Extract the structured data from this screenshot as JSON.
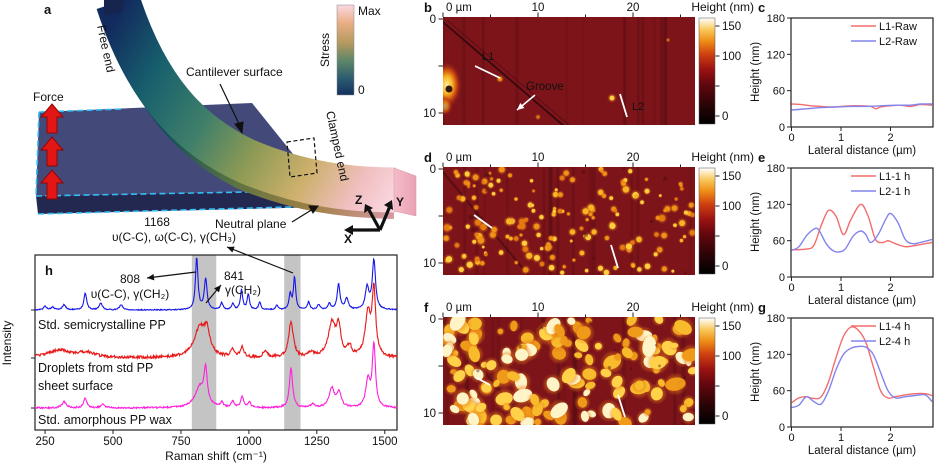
{
  "panel_a": {
    "label": "a",
    "force_label": "Force",
    "free_end_label": "Free end",
    "cantilever_surface_label": "Cantilever surface",
    "clamped_end_label": "Clamped end",
    "neutral_plane_label": "Neutral plane",
    "stress_label": "Stress",
    "stress_max": "Max",
    "stress_min": "0",
    "axis_x": "X",
    "axis_y": "Y",
    "axis_z": "Z",
    "colors": {
      "stress_top": "#fcd7e3",
      "stress_bottom": "#14305f",
      "force_arrow": "#e31616",
      "slab": "#434a7a",
      "dashed_outline": "#35bdf5"
    }
  },
  "afm_panels": [
    {
      "label": "b",
      "ruler_ticks": [
        "0 µm",
        "10",
        "20"
      ],
      "side_ticks": [
        "0",
        "10"
      ],
      "colorbar_title": "Height (nm)",
      "colorbar_ticks": [
        "150",
        "100",
        "0"
      ],
      "annotations": {
        "l1": "L1",
        "l2": "L2",
        "groove": "Groove"
      },
      "style": "flat-with-groove",
      "lines": {
        "l1": [
          57,
          66,
          82,
          78
        ],
        "l2": [
          202,
          94,
          209,
          117
        ]
      }
    },
    {
      "label": "d",
      "ruler_ticks": [
        "0 µm",
        "10",
        "20"
      ],
      "side_ticks": [
        "0",
        "10"
      ],
      "colorbar_title": "Height (nm)",
      "colorbar_ticks": [
        "150",
        "100",
        "0"
      ],
      "annotations": {},
      "style": "small-droplets",
      "lines": {
        "l1": [
          56,
          65,
          74,
          78
        ],
        "l2": [
          193,
          95,
          200,
          118
        ]
      }
    },
    {
      "label": "f",
      "ruler_ticks": [
        "0 µm",
        "10",
        "20"
      ],
      "side_ticks": [
        "0",
        "10"
      ],
      "colorbar_title": "Height (nm)",
      "colorbar_ticks": [
        "150",
        "100",
        "0"
      ],
      "annotations": {},
      "style": "large-droplets",
      "lines": {
        "l1": [
          57,
          77,
          72,
          85
        ],
        "l2": [
          200,
          95,
          207,
          117
        ]
      }
    }
  ],
  "chart_data": [
    {
      "id": "c",
      "label": "c",
      "type": "line",
      "xlabel": "Lateral distance (µm)",
      "ylabel": "Height (nm)",
      "xlim": [
        0,
        2.84
      ],
      "ylim": [
        0,
        180
      ],
      "xticks": [
        0,
        1,
        2
      ],
      "yticks": [
        0,
        60,
        120,
        180
      ],
      "legend_position": "top-right",
      "series": [
        {
          "name": "L1-Raw",
          "color": "#f26d6d",
          "x": [
            0,
            0.2,
            0.4,
            0.6,
            0.8,
            1.0,
            1.2,
            1.4,
            1.6,
            1.7,
            1.8,
            2.0,
            2.2,
            2.4,
            2.6,
            2.84
          ],
          "y": [
            38,
            37,
            35,
            34,
            33,
            34,
            35,
            35,
            34,
            30,
            33,
            35,
            36,
            34,
            37,
            36
          ]
        },
        {
          "name": "L2-Raw",
          "color": "#8484ee",
          "x": [
            0,
            0.3,
            0.6,
            0.9,
            1.2,
            1.5,
            1.8,
            2.1,
            2.4,
            2.6,
            2.84
          ],
          "y": [
            28,
            30,
            32,
            33,
            34,
            34,
            35,
            36,
            36,
            38,
            38
          ]
        }
      ]
    },
    {
      "id": "e",
      "label": "e",
      "type": "line",
      "xlabel": "Lateral distance (µm)",
      "ylabel": "Height (nm)",
      "xlim": [
        0,
        2.84
      ],
      "ylim": [
        0,
        180
      ],
      "xticks": [
        0,
        1,
        2
      ],
      "yticks": [
        0,
        60,
        120,
        180
      ],
      "legend_position": "top-right",
      "series": [
        {
          "name": "L1-1 h",
          "color": "#f26d6d",
          "x": [
            0,
            0.3,
            0.45,
            0.6,
            0.75,
            0.9,
            1.05,
            1.2,
            1.4,
            1.55,
            1.7,
            1.85,
            1.95,
            2.1,
            2.3,
            2.5,
            2.7,
            2.84
          ],
          "y": [
            45,
            46,
            52,
            85,
            110,
            100,
            70,
            95,
            120,
            100,
            62,
            57,
            60,
            55,
            50,
            52,
            55,
            57
          ]
        },
        {
          "name": "L2-1 h",
          "color": "#8484ee",
          "x": [
            0,
            0.15,
            0.3,
            0.45,
            0.55,
            0.7,
            0.85,
            1.0,
            1.1,
            1.25,
            1.4,
            1.5,
            1.6,
            1.75,
            1.9,
            2.0,
            2.15,
            2.3,
            2.45,
            2.6,
            2.75,
            2.84
          ],
          "y": [
            44,
            50,
            68,
            79,
            78,
            55,
            43,
            42,
            48,
            68,
            76,
            70,
            57,
            70,
            95,
            105,
            90,
            62,
            55,
            57,
            60,
            62
          ]
        }
      ]
    },
    {
      "id": "g",
      "label": "g",
      "type": "line",
      "xlabel": "Lateral distance (µm)",
      "ylabel": "Height (nm)",
      "xlim": [
        0,
        2.84
      ],
      "ylim": [
        0,
        180
      ],
      "xticks": [
        0,
        1,
        2
      ],
      "yticks": [
        0,
        60,
        120,
        180
      ],
      "legend_position": "top-right",
      "series": [
        {
          "name": "L1-4 h",
          "color": "#f26d6d",
          "x": [
            0,
            0.15,
            0.3,
            0.45,
            0.6,
            0.75,
            0.9,
            1.05,
            1.2,
            1.35,
            1.5,
            1.65,
            1.8,
            1.95,
            2.1,
            2.3,
            2.5,
            2.7,
            2.84
          ],
          "y": [
            40,
            48,
            50,
            47,
            50,
            75,
            115,
            150,
            165,
            160,
            140,
            100,
            60,
            48,
            50,
            53,
            55,
            55,
            52
          ]
        },
        {
          "name": "L2-4 h",
          "color": "#8484ee",
          "x": [
            0,
            0.15,
            0.3,
            0.45,
            0.6,
            0.75,
            0.9,
            1.05,
            1.2,
            1.35,
            1.5,
            1.65,
            1.8,
            1.95,
            2.1,
            2.3,
            2.5,
            2.7,
            2.84
          ],
          "y": [
            32,
            36,
            50,
            42,
            38,
            60,
            95,
            120,
            130,
            133,
            132,
            120,
            90,
            60,
            48,
            50,
            52,
            53,
            42
          ]
        }
      ]
    },
    {
      "id": "h",
      "label": "h",
      "type": "line",
      "representation": "lorentzian_peaks",
      "xlabel": "Raman shift (cm⁻¹)",
      "ylabel": "Intensity",
      "xlim": [
        213,
        1545
      ],
      "xticks": [
        250,
        500,
        750,
        1000,
        1250,
        1500
      ],
      "highlight_bands": [
        [
          790,
          880
        ],
        [
          1130,
          1190
        ]
      ],
      "annotations": {
        "peak_1168": "1168",
        "assign_1168": "υ(C-C), ω(C-C), γ(CH₃)",
        "peak_808": "808",
        "assign_808": "υ(C-C), γ(CH₂)",
        "peak_841": "841",
        "assign_841": "γ(CH₂)"
      },
      "series": [
        {
          "name": "Std. semicrystalline PP",
          "label_lines": [
            "Std. semicrystalline PP"
          ],
          "color": "#1616e8",
          "noise": 0.5,
          "peaks": [
            [
              250,
              0.07,
              7
            ],
            [
              278,
              0.05,
              7
            ],
            [
              320,
              0.1,
              7
            ],
            [
              398,
              0.33,
              6
            ],
            [
              455,
              0.13,
              7
            ],
            [
              530,
              0.1,
              7
            ],
            [
              808,
              1.0,
              5.5
            ],
            [
              841,
              0.6,
              6
            ],
            [
              900,
              0.14,
              5
            ],
            [
              941,
              0.12,
              5
            ],
            [
              973,
              0.38,
              5
            ],
            [
              998,
              0.3,
              5
            ],
            [
              1040,
              0.15,
              5
            ],
            [
              1103,
              0.09,
              5
            ],
            [
              1152,
              0.3,
              5
            ],
            [
              1168,
              0.62,
              5
            ],
            [
              1220,
              0.15,
              5
            ],
            [
              1257,
              0.1,
              6
            ],
            [
              1296,
              0.12,
              6
            ],
            [
              1330,
              0.5,
              6
            ],
            [
              1360,
              0.22,
              7
            ],
            [
              1435,
              0.42,
              8
            ],
            [
              1460,
              0.95,
              7
            ]
          ]
        },
        {
          "name": "Droplets from std PP sheet surface",
          "label_lines": [
            "Droplets from std PP",
            "sheet surface"
          ],
          "color": "#e81616",
          "noise": 1.4,
          "peaks": [
            [
              300,
              0.09,
              50
            ],
            [
              400,
              0.06,
              40
            ],
            [
              820,
              0.36,
              26
            ],
            [
              846,
              0.24,
              12
            ],
            [
              941,
              0.09,
              8
            ],
            [
              975,
              0.13,
              7
            ],
            [
              1060,
              0.07,
              10
            ],
            [
              1155,
              0.44,
              10
            ],
            [
              1230,
              0.06,
              12
            ],
            [
              1305,
              0.4,
              16
            ],
            [
              1330,
              0.34,
              10
            ],
            [
              1370,
              0.12,
              9
            ],
            [
              1438,
              0.52,
              12
            ],
            [
              1460,
              0.78,
              8
            ]
          ]
        },
        {
          "name": "Std. amorphous PP wax",
          "label_lines": [
            "Std. amorphous PP wax"
          ],
          "color": "#ff20dd",
          "noise": 0.8,
          "peaks": [
            [
              320,
              0.09,
              10
            ],
            [
              398,
              0.14,
              7
            ],
            [
              462,
              0.06,
              7
            ],
            [
              820,
              0.3,
              22
            ],
            [
              841,
              0.48,
              7
            ],
            [
              900,
              0.07,
              6
            ],
            [
              941,
              0.09,
              6
            ],
            [
              975,
              0.17,
              6
            ],
            [
              1002,
              0.08,
              6
            ],
            [
              1155,
              0.58,
              7
            ],
            [
              1235,
              0.05,
              9
            ],
            [
              1305,
              0.28,
              12
            ],
            [
              1332,
              0.22,
              9
            ],
            [
              1438,
              0.4,
              9
            ],
            [
              1460,
              0.92,
              7
            ]
          ]
        }
      ]
    }
  ]
}
